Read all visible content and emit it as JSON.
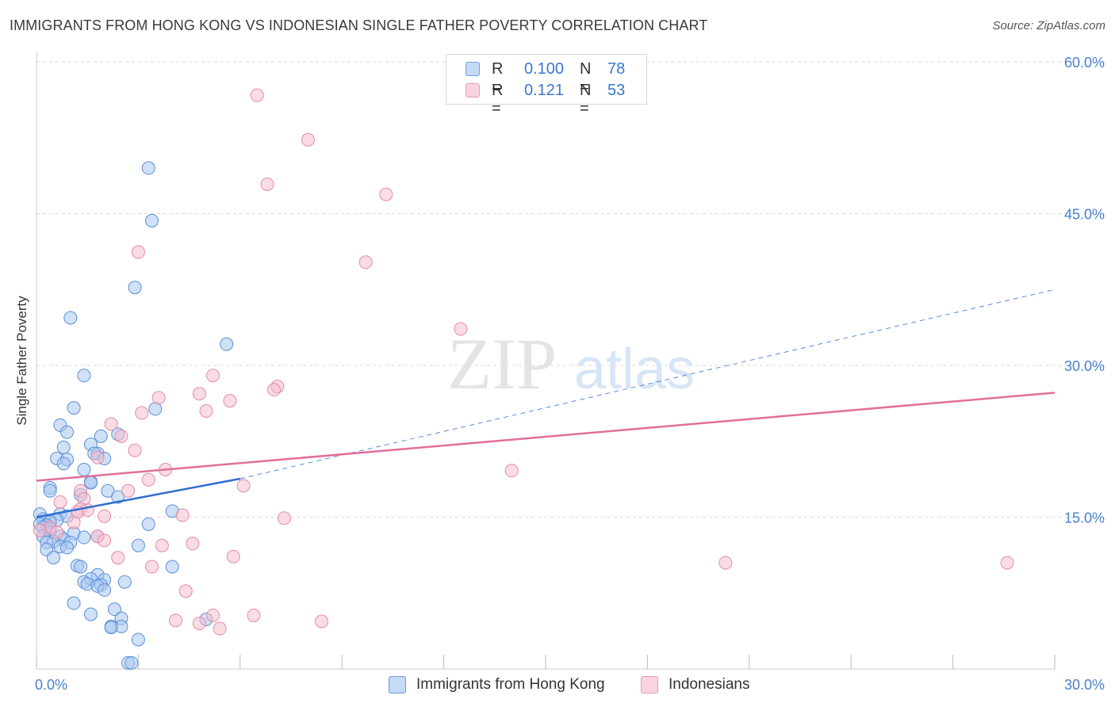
{
  "header": {
    "title": "IMMIGRANTS FROM HONG KONG VS INDONESIAN SINGLE FATHER POVERTY CORRELATION CHART",
    "source": "Source: ZipAtlas.com"
  },
  "watermark": {
    "zip": "ZIP",
    "atlas": "atlas"
  },
  "colors": {
    "blue_fill": "#a9c8f0",
    "blue_stroke": "#5b8fd6",
    "blue_line": "#2f6fd0",
    "pink_fill": "#f5bfd0",
    "pink_stroke": "#e58aa9",
    "pink_line": "#e0709a",
    "axis_label": "#4a7fd0",
    "grid": "#d9d9d9"
  },
  "legend": {
    "rows": [
      {
        "r_label": "R =",
        "r_value": "0.100",
        "n_label": "N =",
        "n_value": "78"
      },
      {
        "r_label": "R =",
        "r_value": "0.121",
        "n_label": "N =",
        "n_value": "53"
      }
    ]
  },
  "bottom_legend": {
    "items": [
      {
        "label": "Immigrants from Hong Kong"
      },
      {
        "label": "Indonesians"
      }
    ]
  },
  "chart_data": {
    "type": "scatter",
    "title": "IMMIGRANTS FROM HONG KONG VS INDONESIAN SINGLE FATHER POVERTY CORRELATION CHART",
    "xlabel": "",
    "ylabel": "Single Father Poverty",
    "xlim": [
      0,
      30
    ],
    "ylim": [
      0,
      60
    ],
    "x_tick_labels": [
      "0.0%",
      "30.0%"
    ],
    "y_ticks": [
      15,
      30,
      45,
      60
    ],
    "y_tick_labels": [
      "15.0%",
      "30.0%",
      "45.0%",
      "60.0%"
    ],
    "grid": true,
    "legend_position": "top-center",
    "series": [
      {
        "name": "Immigrants from Hong Kong",
        "r": 0.1,
        "n": 78,
        "trend_solid": {
          "x": [
            0,
            6.0
          ],
          "y": [
            15.0,
            18.8
          ]
        },
        "trend_dashed": {
          "x": [
            6.0,
            30.0
          ],
          "y": [
            18.8,
            37.5
          ]
        },
        "points": [
          [
            3.3,
            49.5
          ],
          [
            3.4,
            44.3
          ],
          [
            2.9,
            37.7
          ],
          [
            1.0,
            34.7
          ],
          [
            5.6,
            32.1
          ],
          [
            1.4,
            29.0
          ],
          [
            3.5,
            25.7
          ],
          [
            1.1,
            25.8
          ],
          [
            0.7,
            24.1
          ],
          [
            0.9,
            23.4
          ],
          [
            2.4,
            23.2
          ],
          [
            1.9,
            23.0
          ],
          [
            1.6,
            22.2
          ],
          [
            0.8,
            21.9
          ],
          [
            1.8,
            21.3
          ],
          [
            1.7,
            21.3
          ],
          [
            0.6,
            20.8
          ],
          [
            2.0,
            20.8
          ],
          [
            0.9,
            20.7
          ],
          [
            0.8,
            20.3
          ],
          [
            1.4,
            19.7
          ],
          [
            1.6,
            18.5
          ],
          [
            1.6,
            18.4
          ],
          [
            0.4,
            17.9
          ],
          [
            0.4,
            17.6
          ],
          [
            2.1,
            17.6
          ],
          [
            1.3,
            17.2
          ],
          [
            2.4,
            17.0
          ],
          [
            4.0,
            15.6
          ],
          [
            0.1,
            15.3
          ],
          [
            0.7,
            15.3
          ],
          [
            0.9,
            15.1
          ],
          [
            0.2,
            14.8
          ],
          [
            0.6,
            14.7
          ],
          [
            0.4,
            14.5
          ],
          [
            0.1,
            14.3
          ],
          [
            0.3,
            14.2
          ],
          [
            3.3,
            14.3
          ],
          [
            0.2,
            14.0
          ],
          [
            0.4,
            13.8
          ],
          [
            0.4,
            13.5
          ],
          [
            1.1,
            13.4
          ],
          [
            0.2,
            13.1
          ],
          [
            0.7,
            13.1
          ],
          [
            1.4,
            13.0
          ],
          [
            1.8,
            13.1
          ],
          [
            0.8,
            12.8
          ],
          [
            0.5,
            12.6
          ],
          [
            1.0,
            12.5
          ],
          [
            0.3,
            12.5
          ],
          [
            0.7,
            12.1
          ],
          [
            3.0,
            12.2
          ],
          [
            0.9,
            12.0
          ],
          [
            0.3,
            11.8
          ],
          [
            0.5,
            11.0
          ],
          [
            1.2,
            10.2
          ],
          [
            1.3,
            10.1
          ],
          [
            4.0,
            10.1
          ],
          [
            1.8,
            9.3
          ],
          [
            1.6,
            8.9
          ],
          [
            2.0,
            8.8
          ],
          [
            1.4,
            8.6
          ],
          [
            2.6,
            8.6
          ],
          [
            1.5,
            8.4
          ],
          [
            1.9,
            8.3
          ],
          [
            1.8,
            8.2
          ],
          [
            2.0,
            7.8
          ],
          [
            1.1,
            6.5
          ],
          [
            2.3,
            5.9
          ],
          [
            1.6,
            5.4
          ],
          [
            2.5,
            5.0
          ],
          [
            5.0,
            4.9
          ],
          [
            2.2,
            4.2
          ],
          [
            2.5,
            4.2
          ],
          [
            2.2,
            4.1
          ],
          [
            3.0,
            2.9
          ],
          [
            2.7,
            0.6
          ],
          [
            2.8,
            0.6
          ]
        ]
      },
      {
        "name": "Indonesians",
        "r": 0.121,
        "n": 53,
        "trend_solid": {
          "x": [
            0,
            30.0
          ],
          "y": [
            18.6,
            27.3
          ]
        },
        "points": [
          [
            6.5,
            56.7
          ],
          [
            8.0,
            52.3
          ],
          [
            6.8,
            47.9
          ],
          [
            10.3,
            46.9
          ],
          [
            3.0,
            41.2
          ],
          [
            9.7,
            40.2
          ],
          [
            12.5,
            33.6
          ],
          [
            5.2,
            29.0
          ],
          [
            7.1,
            27.9
          ],
          [
            7.0,
            27.6
          ],
          [
            4.8,
            27.2
          ],
          [
            3.6,
            26.8
          ],
          [
            5.7,
            26.5
          ],
          [
            5.0,
            25.5
          ],
          [
            3.1,
            25.3
          ],
          [
            2.2,
            24.2
          ],
          [
            2.5,
            23.0
          ],
          [
            2.9,
            21.6
          ],
          [
            1.8,
            20.9
          ],
          [
            3.8,
            19.7
          ],
          [
            14.0,
            19.6
          ],
          [
            3.3,
            18.7
          ],
          [
            6.1,
            18.1
          ],
          [
            1.3,
            17.6
          ],
          [
            2.7,
            17.6
          ],
          [
            1.4,
            16.8
          ],
          [
            0.7,
            16.5
          ],
          [
            1.3,
            15.8
          ],
          [
            1.5,
            15.7
          ],
          [
            1.2,
            15.5
          ],
          [
            4.3,
            15.2
          ],
          [
            2.0,
            15.1
          ],
          [
            7.3,
            14.9
          ],
          [
            1.1,
            14.5
          ],
          [
            0.4,
            14.0
          ],
          [
            0.1,
            13.7
          ],
          [
            0.6,
            13.5
          ],
          [
            1.8,
            13.1
          ],
          [
            2.0,
            12.7
          ],
          [
            4.6,
            12.4
          ],
          [
            3.7,
            12.2
          ],
          [
            5.8,
            11.1
          ],
          [
            2.4,
            11.0
          ],
          [
            3.4,
            10.1
          ],
          [
            20.3,
            10.5
          ],
          [
            28.6,
            10.5
          ],
          [
            4.4,
            7.7
          ],
          [
            6.4,
            5.3
          ],
          [
            5.2,
            5.3
          ],
          [
            4.1,
            4.8
          ],
          [
            8.4,
            4.7
          ],
          [
            4.8,
            4.5
          ],
          [
            5.4,
            4.0
          ]
        ]
      }
    ]
  }
}
